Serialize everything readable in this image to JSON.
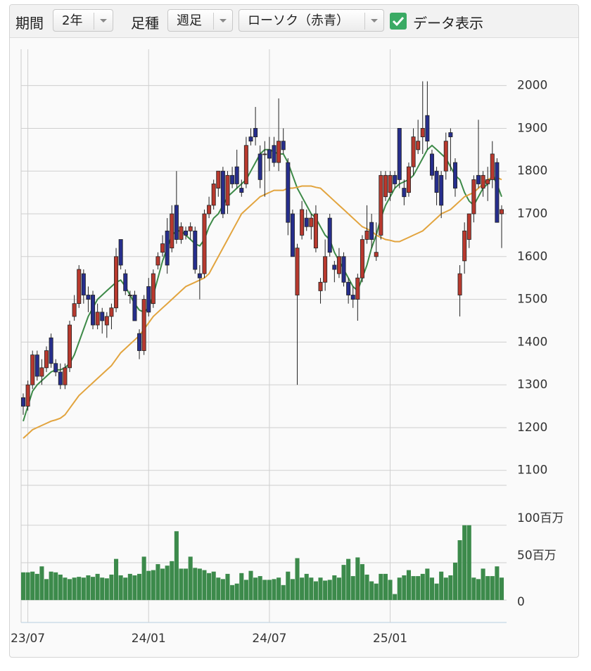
{
  "controls": {
    "period_label": "期間",
    "period_value": "2年",
    "interval_label": "足種",
    "interval_value": "週足",
    "chart_style": "ローソク（赤青）",
    "data_toggle": "データ表示",
    "data_toggle_checked": true
  },
  "chart_data": {
    "type": "candlestick",
    "categories": [
      null,
      "23/07",
      null,
      null,
      null,
      null,
      null,
      null,
      null,
      null,
      null,
      null,
      null,
      null,
      null,
      null,
      null,
      null,
      null,
      null,
      null,
      null,
      null,
      null,
      null,
      null,
      null,
      "24/01",
      null,
      null,
      null,
      null,
      null,
      null,
      null,
      null,
      null,
      null,
      null,
      null,
      null,
      null,
      null,
      null,
      null,
      null,
      null,
      null,
      null,
      null,
      null,
      null,
      null,
      "24/07",
      null,
      null,
      null,
      null,
      null,
      null,
      null,
      null,
      null,
      null,
      null,
      null,
      null,
      null,
      null,
      null,
      null,
      null,
      null,
      null,
      null,
      null,
      null,
      null,
      null,
      "25/01",
      null,
      null,
      null,
      null,
      null,
      null,
      null,
      null,
      null,
      null,
      null,
      null,
      null,
      null,
      null,
      null,
      null,
      null,
      null,
      null,
      null,
      null,
      null,
      null
    ],
    "open": [
      1270,
      1250,
      1300,
      1370,
      1320,
      1340,
      1410,
      1350,
      1330,
      1300,
      1340,
      1460,
      1490,
      1560,
      1510,
      1510,
      1440,
      1470,
      1440,
      1460,
      1480,
      1640,
      1560,
      1510,
      1510,
      1420,
      1380,
      1530,
      1490,
      1580,
      1610,
      1660,
      1620,
      1720,
      1640,
      1660,
      1660,
      1660,
      1560,
      1560,
      1700,
      1720,
      1760,
      1800,
      1720,
      1790,
      1810,
      1760,
      1770,
      1880,
      1900,
      1840,
      1840,
      1850,
      1860,
      1820,
      1870,
      1820,
      1700,
      1510,
      1650,
      1690,
      1670,
      1620,
      1520,
      1540,
      1690,
      1580,
      1560,
      1600,
      1540,
      1510,
      1500,
      1550,
      1640,
      1680,
      1600,
      1650,
      1740,
      1750,
      1790,
      1900,
      1760,
      1750,
      1810,
      1850,
      1880,
      1930,
      1840,
      1800,
      1790,
      1800,
      1890,
      1820,
      1510,
      1590,
      1640,
      1700,
      1790,
      1760,
      1770,
      1780,
      1820,
      1700
    ],
    "high": [
      1280,
      1310,
      1380,
      1380,
      1360,
      1390,
      1420,
      1360,
      1350,
      1350,
      1450,
      1510,
      1580,
      1570,
      1530,
      1520,
      1490,
      1480,
      1470,
      1490,
      1620,
      1640,
      1570,
      1520,
      1520,
      1430,
      1510,
      1550,
      1570,
      1610,
      1650,
      1690,
      1720,
      1800,
      1680,
      1670,
      1680,
      1670,
      1580,
      1710,
      1740,
      1780,
      1800,
      1810,
      1800,
      1810,
      1850,
      1780,
      1880,
      1900,
      1950,
      1860,
      1870,
      1880,
      1880,
      1970,
      1900,
      1830,
      1710,
      1630,
      1730,
      1710,
      1700,
      1720,
      1550,
      1640,
      1700,
      1590,
      1620,
      1610,
      1550,
      1530,
      1560,
      1650,
      1720,
      1700,
      1680,
      1800,
      1800,
      1800,
      1800,
      1900,
      1780,
      1820,
      1900,
      1920,
      2010,
      2010,
      1850,
      1810,
      1800,
      1890,
      1900,
      1830,
      1580,
      1680,
      1700,
      1790,
      1920,
      1800,
      1810,
      1870,
      1830,
      1720
    ],
    "low": [
      1230,
      1240,
      1290,
      1310,
      1300,
      1330,
      1340,
      1320,
      1290,
      1290,
      1330,
      1450,
      1480,
      1490,
      1470,
      1430,
      1430,
      1420,
      1410,
      1430,
      1470,
      1570,
      1510,
      1490,
      1450,
      1360,
      1370,
      1460,
      1480,
      1570,
      1600,
      1560,
      1610,
      1630,
      1630,
      1640,
      1640,
      1560,
      1500,
      1550,
      1690,
      1710,
      1740,
      1690,
      1700,
      1760,
      1760,
      1740,
      1760,
      1860,
      1860,
      1760,
      1740,
      1800,
      1810,
      1800,
      1840,
      1650,
      1600,
      1300,
      1640,
      1660,
      1640,
      1610,
      1490,
      1520,
      1600,
      1540,
      1550,
      1530,
      1490,
      1480,
      1450,
      1540,
      1630,
      1620,
      1590,
      1640,
      1730,
      1730,
      1760,
      1760,
      1720,
      1740,
      1790,
      1840,
      1840,
      1850,
      1780,
      1720,
      1690,
      1780,
      1800,
      1740,
      1460,
      1560,
      1620,
      1680,
      1760,
      1740,
      1730,
      1760,
      1680,
      1620
    ],
    "close": [
      1250,
      1300,
      1370,
      1320,
      1340,
      1380,
      1350,
      1330,
      1300,
      1340,
      1440,
      1490,
      1570,
      1510,
      1500,
      1440,
      1470,
      1450,
      1460,
      1480,
      1600,
      1580,
      1520,
      1510,
      1450,
      1380,
      1500,
      1470,
      1560,
      1600,
      1630,
      1580,
      1700,
      1640,
      1670,
      1650,
      1670,
      1570,
      1550,
      1700,
      1720,
      1770,
      1800,
      1700,
      1790,
      1770,
      1770,
      1750,
      1860,
      1870,
      1880,
      1780,
      1840,
      1830,
      1820,
      1870,
      1850,
      1680,
      1600,
      1620,
      1710,
      1670,
      1690,
      1700,
      1540,
      1600,
      1610,
      1570,
      1600,
      1540,
      1510,
      1500,
      1550,
      1640,
      1660,
      1640,
      1610,
      1790,
      1790,
      1790,
      1770,
      1780,
      1740,
      1810,
      1880,
      1870,
      1900,
      1870,
      1790,
      1750,
      1720,
      1870,
      1880,
      1760,
      1560,
      1660,
      1700,
      1780,
      1770,
      1790,
      1780,
      1840,
      1680,
      1710
    ],
    "up_color": "#b8392e",
    "down_color": "#262e8c",
    "series": [
      {
        "color": "#3d8a48",
        "values": [
          1215,
          1250,
          1285,
          1300,
          1310,
          1320,
          1330,
          1335,
          1335,
          1340,
          1350,
          1370,
          1400,
          1430,
          1460,
          1480,
          1500,
          1510,
          1520,
          1530,
          1540,
          1545,
          1530,
          1510,
          1490,
          1475,
          1470,
          1480,
          1510,
          1550,
          1590,
          1620,
          1650,
          1660,
          1660,
          1650,
          1640,
          1630,
          1625,
          1640,
          1670,
          1690,
          1700,
          1720,
          1740,
          1750,
          1760,
          1770,
          1780,
          1800,
          1820,
          1840,
          1850,
          1850,
          1845,
          1840,
          1840,
          1820,
          1790,
          1760,
          1740,
          1720,
          1700,
          1690,
          1670,
          1650,
          1640,
          1610,
          1590,
          1570,
          1550,
          1530,
          1520,
          1550,
          1580,
          1620,
          1650,
          1690,
          1720,
          1740,
          1760,
          1770,
          1775,
          1780,
          1790,
          1810,
          1830,
          1850,
          1860,
          1850,
          1840,
          1830,
          1810,
          1790,
          1780,
          1750,
          1730,
          1720,
          1740,
          1760,
          1770,
          1790,
          1770,
          1740
        ]
      },
      {
        "color": "#e2a43e",
        "values": [
          1175,
          1185,
          1195,
          1200,
          1205,
          1210,
          1215,
          1218,
          1222,
          1230,
          1245,
          1260,
          1275,
          1285,
          1295,
          1305,
          1315,
          1325,
          1335,
          1345,
          1360,
          1375,
          1385,
          1395,
          1405,
          1415,
          1430,
          1445,
          1460,
          1470,
          1480,
          1490,
          1500,
          1510,
          1520,
          1530,
          1535,
          1540,
          1545,
          1550,
          1560,
          1580,
          1600,
          1620,
          1640,
          1660,
          1680,
          1700,
          1710,
          1720,
          1730,
          1740,
          1745,
          1750,
          1755,
          1755,
          1755,
          1760,
          1760,
          1762,
          1765,
          1765,
          1765,
          1762,
          1760,
          1750,
          1740,
          1730,
          1720,
          1710,
          1700,
          1690,
          1680,
          1670,
          1665,
          1660,
          1650,
          1645,
          1640,
          1638,
          1635,
          1635,
          1640,
          1645,
          1650,
          1655,
          1660,
          1670,
          1680,
          1690,
          1700,
          1705,
          1710,
          1720,
          1730,
          1740,
          1745,
          1750,
          1760,
          1770,
          1780,
          1785,
          1785,
          1780
        ]
      }
    ],
    "ylim": [
      1065,
      2085
    ],
    "yticks": [
      1100,
      1200,
      1300,
      1400,
      1500,
      1600,
      1700,
      1800,
      1900,
      2000
    ],
    "grid": true,
    "volume": {
      "color": "#3c8a4b",
      "values": [
        37,
        37,
        38,
        35,
        45,
        28,
        38,
        37,
        34,
        30,
        28,
        30,
        31,
        30,
        33,
        31,
        35,
        30,
        29,
        34,
        55,
        33,
        30,
        35,
        33,
        35,
        58,
        39,
        40,
        48,
        42,
        46,
        52,
        92,
        42,
        42,
        58,
        43,
        42,
        40,
        36,
        38,
        30,
        28,
        35,
        20,
        22,
        36,
        27,
        39,
        30,
        32,
        27,
        27,
        28,
        30,
        20,
        38,
        28,
        56,
        30,
        35,
        30,
        25,
        30,
        26,
        27,
        33,
        30,
        47,
        55,
        32,
        57,
        48,
        34,
        25,
        22,
        35,
        35,
        27,
        8,
        30,
        33,
        40,
        32,
        32,
        35,
        42,
        30,
        22,
        38,
        30,
        33,
        50,
        80,
        100,
        100,
        30,
        28,
        42,
        32,
        32,
        45,
        30
      ],
      "ylim": [
        -30,
        144
      ],
      "yticks": [
        0,
        {
          "value": 50,
          "label": "50百万"
        },
        {
          "value": 100,
          "label": "100百万"
        }
      ]
    }
  }
}
